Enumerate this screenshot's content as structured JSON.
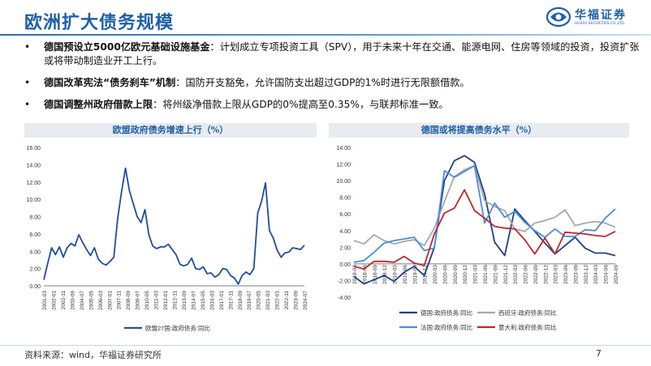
{
  "header": {
    "title": "欧洲扩大债务规模",
    "logo_name": "华福证券",
    "logo_sub": "HUAFU SECURITIES CO.,LTD."
  },
  "bullets": [
    {
      "bold": "德国预设立5000亿欧元基础设施基金",
      "text": "：计划成立专项投资工具（SPV），用于未来十年在交通、能源电网、住房等领域的投资，投资扩张或将带动制造业开工上行。"
    },
    {
      "bold": "德国改革宪法“债务刹车”机制",
      "text": "：国防开支豁免，允许国防支出超过GDP的1%时进行无限额借款。"
    },
    {
      "bold": "德国调整州政府借款上限",
      "text": "：将州级净借款上限从GDP的0%提高至0.35%，与联邦标准一致。"
    }
  ],
  "charts": {
    "left_title": "欧盟政府债务增速上行（%）",
    "right_title": "德国或将提高债务水平（%）"
  },
  "chart_data": [
    {
      "type": "line",
      "title": "欧盟政府债务增速上行（%）",
      "ylim": [
        0,
        16
      ],
      "yticks": [
        "0.00",
        "2.00",
        "4.00",
        "6.00",
        "8.00",
        "10.00",
        "12.00",
        "14.00",
        "16.00"
      ],
      "xticks": [
        "2001-03",
        "2002-01",
        "2002-11",
        "2003-09",
        "2004-07",
        "2005-05",
        "2006-03",
        "2007-01",
        "2007-11",
        "2008-09",
        "2009-07",
        "2010-05",
        "2011-03",
        "2012-01",
        "2012-11",
        "2013-09",
        "2014-07",
        "2015-05",
        "2016-03",
        "2017-01",
        "2017-11",
        "2018-09",
        "2019-07",
        "2020-05",
        "2021-03",
        "2022-01",
        "2022-11",
        "2023-09",
        "2024-07"
      ],
      "series": [
        {
          "name": "欧盟27国:政府债务:同比",
          "color": "#1f4e9c",
          "values": [
            0.7,
            2.6,
            4.4,
            3.6,
            4.5,
            3.3,
            4.4,
            4.9,
            4.6,
            5.9,
            5.0,
            4.2,
            3.5,
            4.4,
            3.1,
            2.6,
            2.4,
            2.8,
            3.3,
            7.8,
            10.9,
            13.6,
            11.0,
            9.5,
            8.0,
            7.3,
            8.8,
            5.9,
            4.6,
            4.3,
            4.5,
            4.5,
            4.8,
            4.2,
            3.6,
            2.5,
            2.3,
            2.5,
            3.2,
            2.0,
            1.9,
            2.2,
            1.4,
            1.5,
            1.0,
            1.3,
            2.0,
            1.9,
            1.2,
            0.9,
            0.2,
            1.2,
            1.6,
            1.3,
            2.0,
            8.4,
            9.8,
            11.9,
            6.4,
            5.5,
            4.1,
            3.3,
            3.8,
            3.9,
            4.4,
            4.3,
            4.2,
            4.7
          ]
        }
      ]
    },
    {
      "type": "line",
      "title": "德国或将提高债务水平（%）",
      "ylim": [
        -4,
        14
      ],
      "yticks": [
        "-4.00",
        "-2.00",
        "0.00",
        "2.00",
        "4.00",
        "6.00",
        "8.00",
        "10.00",
        "12.00",
        "14.00"
      ],
      "xticks": [
        "2018-03",
        "2018-06",
        "2018-09",
        "2018-12",
        "2019-03",
        "2019-06",
        "2019-09",
        "2019-12",
        "2020-03",
        "2020-06",
        "2020-09",
        "2020-12",
        "2021-03",
        "2021-06",
        "2021-09",
        "2021-12",
        "2022-03",
        "2022-06",
        "2022-09",
        "2022-12",
        "2023-03",
        "2023-06",
        "2023-09",
        "2023-12",
        "2024-03",
        "2024-06",
        "2024-09"
      ],
      "series": [
        {
          "name": "德国:政府债务:同比",
          "color": "#1f3f8c",
          "values": [
            -1.5,
            -2.4,
            -1.9,
            -1.4,
            -2.1,
            -1.0,
            -0.3,
            -1.4,
            2.0,
            10.0,
            12.4,
            13.0,
            12.2,
            8.4,
            2.6,
            1.0,
            6.6,
            5.2,
            3.9,
            2.5,
            1.2,
            2.2,
            3.2,
            1.9,
            1.3,
            1.3,
            1.0
          ]
        },
        {
          "name": "西班牙:政府债务:同比",
          "color": "#a8a8a8",
          "values": [
            2.8,
            2.4,
            3.5,
            2.8,
            2.4,
            2.7,
            2.9,
            2.2,
            4.3,
            7.5,
            10.5,
            11.3,
            11.8,
            7.6,
            6.9,
            6.4,
            4.2,
            3.9,
            4.9,
            5.2,
            5.6,
            6.5,
            4.6,
            4.9,
            5.1,
            4.9,
            4.4
          ]
        },
        {
          "name": "法国:政府债务:同比",
          "color": "#4a8de0",
          "values": [
            0.2,
            0.4,
            1.4,
            2.5,
            2.8,
            3.0,
            3.2,
            1.6,
            1.9,
            11.2,
            10.4,
            11.1,
            11.8,
            4.9,
            7.3,
            5.6,
            6.3,
            5.0,
            4.0,
            3.2,
            4.2,
            3.3,
            3.3,
            4.1,
            4.0,
            5.5,
            6.6
          ]
        },
        {
          "name": "意大利:政府债务:同比",
          "color": "#c0262d",
          "values": [
            -0.3,
            -0.6,
            0.3,
            0.3,
            0.2,
            0.9,
            0.1,
            -0.2,
            3.6,
            6.1,
            6.7,
            8.9,
            6.4,
            5.5,
            4.5,
            4.3,
            4.2,
            2.9,
            1.2,
            3.1,
            1.2,
            3.8,
            3.7,
            3.6,
            3.4,
            3.3,
            3.9
          ]
        }
      ]
    }
  ],
  "footer": {
    "source": "资料来源：wind，华福证券研究所",
    "page": "7"
  }
}
